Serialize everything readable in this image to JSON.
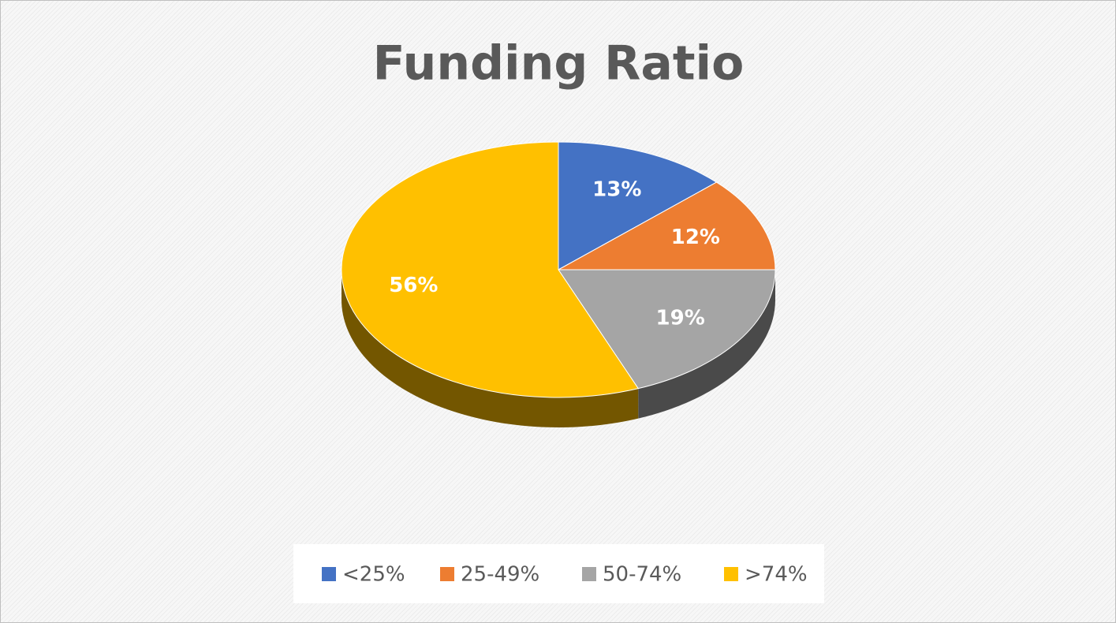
{
  "chart_data": {
    "type": "pie",
    "title": "Funding Ratio",
    "categories": [
      "<25%",
      "25-49%",
      "50-74%",
      ">74%"
    ],
    "values": [
      13,
      12,
      19,
      56
    ],
    "value_labels": [
      "13%",
      "12%",
      "19%",
      "56%"
    ],
    "colors": [
      "#4472c4",
      "#ed7d31",
      "#a5a5a5",
      "#ffc000"
    ],
    "legend": "bottom"
  }
}
